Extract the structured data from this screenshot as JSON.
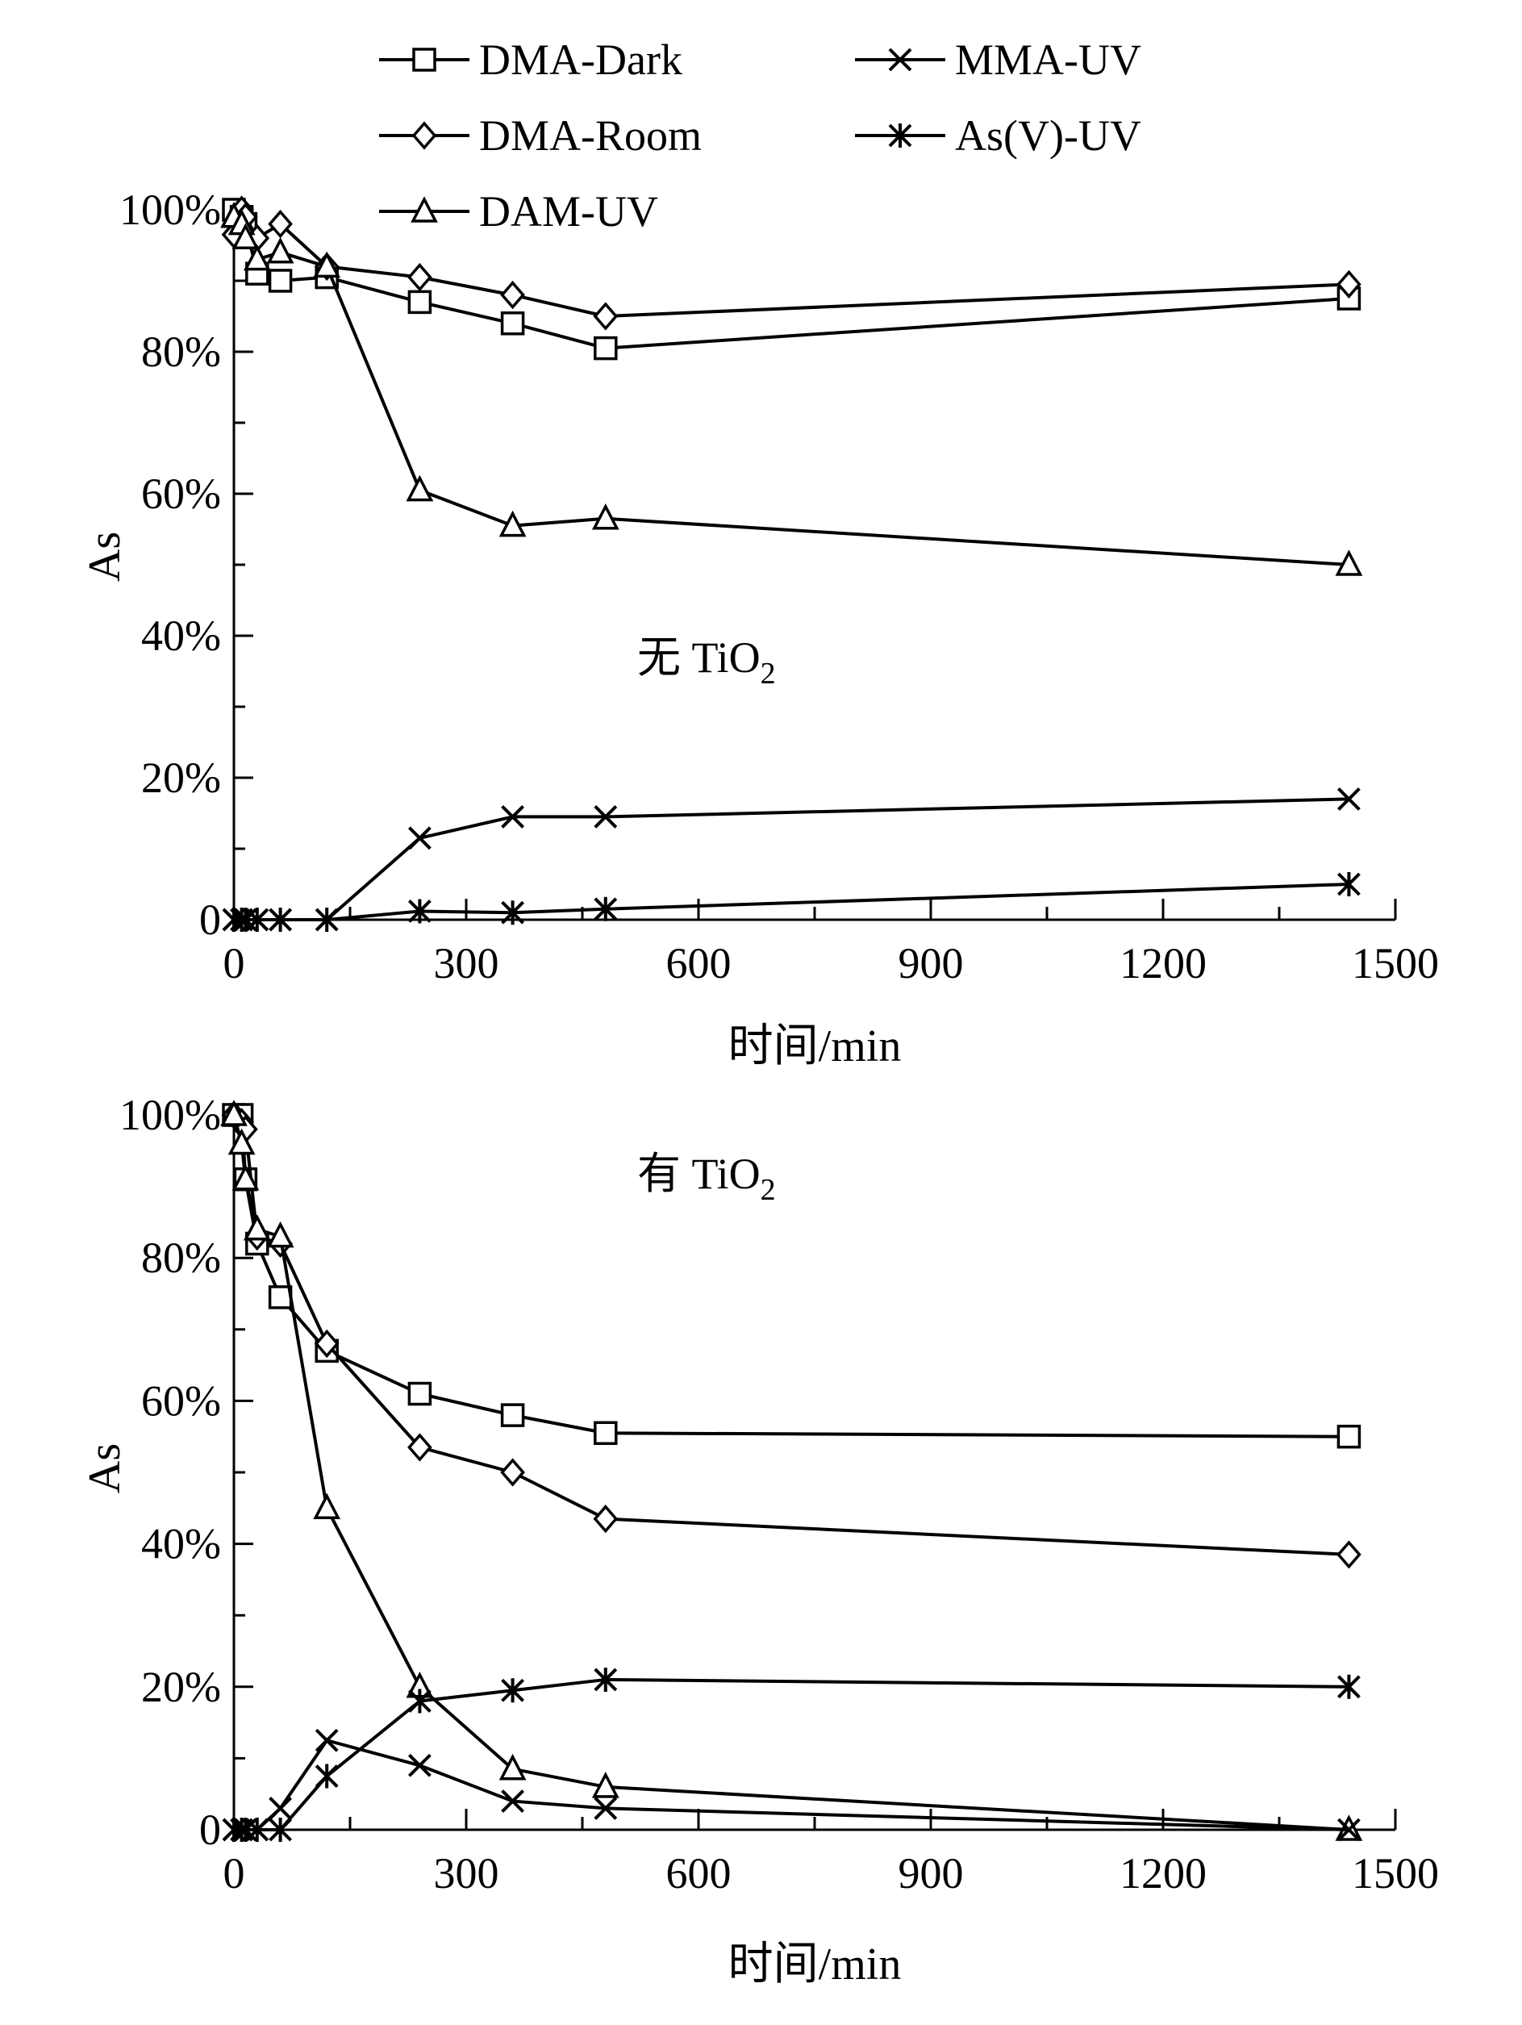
{
  "legend": [
    {
      "key": "dma_dark",
      "label": "DMA-Dark",
      "marker": "square"
    },
    {
      "key": "dma_room",
      "label": "DMA-Room",
      "marker": "diamond"
    },
    {
      "key": "dam_uv",
      "label": "DAM-UV",
      "marker": "triangle"
    },
    {
      "key": "mma_uv",
      "label": "MMA-UV",
      "marker": "x"
    },
    {
      "key": "asv_uv",
      "label": "As(V)-UV",
      "marker": "star"
    }
  ],
  "chart_data": [
    {
      "type": "line",
      "annotation": {
        "prefix": "无 TiO",
        "subscript": "2"
      },
      "xlabel": "时间/min",
      "ylabel": "As",
      "xlim": [
        0,
        1500
      ],
      "ylim": [
        0,
        100
      ],
      "xticks": [
        0,
        300,
        600,
        900,
        1200,
        1500
      ],
      "xtick_labels": [
        "0",
        "300",
        "600",
        "900",
        "1200",
        "1500"
      ],
      "yticks": [
        0,
        20,
        40,
        60,
        80,
        100
      ],
      "ytick_labels": [
        "0",
        "20%",
        "40%",
        "60%",
        "80%",
        "100%"
      ],
      "grid": false,
      "series": [
        {
          "key": "dma_dark",
          "name": "DMA-Dark",
          "marker": "square",
          "x": [
            0,
            10,
            15,
            30,
            60,
            120,
            240,
            360,
            480,
            1440
          ],
          "y": [
            100,
            99,
            98,
            91,
            90,
            90.5,
            87,
            84,
            80.5,
            87.5
          ]
        },
        {
          "key": "dma_room",
          "name": "DMA-Room",
          "marker": "diamond",
          "x": [
            0,
            10,
            15,
            30,
            60,
            120,
            240,
            360,
            480,
            1440
          ],
          "y": [
            96.5,
            100,
            99,
            96,
            98,
            92,
            90.5,
            88,
            85,
            89.5
          ]
        },
        {
          "key": "dam_uv",
          "name": "DAM-UV",
          "marker": "triangle",
          "x": [
            0,
            10,
            15,
            30,
            60,
            120,
            240,
            360,
            480,
            1440
          ],
          "y": [
            99,
            98,
            96,
            93,
            94,
            92,
            60.5,
            55.5,
            56.5,
            50
          ]
        },
        {
          "key": "mma_uv",
          "name": "MMA-UV",
          "marker": "x",
          "x": [
            0,
            10,
            15,
            30,
            60,
            120,
            240,
            360,
            480,
            1440
          ],
          "y": [
            0,
            0,
            0,
            0,
            0,
            0,
            11.5,
            14.5,
            14.5,
            17
          ]
        },
        {
          "key": "asv_uv",
          "name": "As(V)-UV",
          "marker": "star",
          "x": [
            0,
            10,
            15,
            30,
            60,
            120,
            240,
            360,
            480,
            1440
          ],
          "y": [
            0,
            0,
            0,
            0,
            0,
            0,
            1.2,
            1,
            1.5,
            5
          ]
        }
      ]
    },
    {
      "type": "line",
      "annotation": {
        "prefix": "有 TiO",
        "subscript": "2"
      },
      "xlabel": "时间/min",
      "ylabel": "As",
      "xlim": [
        0,
        1500
      ],
      "ylim": [
        0,
        100
      ],
      "xticks": [
        0,
        300,
        600,
        900,
        1200,
        1500
      ],
      "xtick_labels": [
        "0",
        "300",
        "600",
        "900",
        "1200",
        "1500"
      ],
      "yticks": [
        0,
        20,
        40,
        60,
        80,
        100
      ],
      "ytick_labels": [
        "0",
        "20%",
        "40%",
        "60%",
        "80%",
        "100%"
      ],
      "grid": false,
      "series": [
        {
          "key": "dma_dark",
          "name": "DMA-Dark",
          "marker": "square",
          "x": [
            0,
            10,
            15,
            30,
            60,
            120,
            240,
            360,
            480,
            1440
          ],
          "y": [
            100,
            100,
            91,
            82,
            74.5,
            67,
            61,
            58,
            55.5,
            55
          ]
        },
        {
          "key": "dma_room",
          "name": "DMA-Room",
          "marker": "diamond",
          "x": [
            0,
            10,
            15,
            30,
            60,
            120,
            240,
            360,
            480,
            1440
          ],
          "y": [
            100,
            99,
            98,
            83,
            82,
            68,
            53.5,
            50,
            43.5,
            38.5
          ]
        },
        {
          "key": "dam_uv",
          "name": "DAM-UV",
          "marker": "triangle",
          "x": [
            0,
            10,
            15,
            30,
            60,
            120,
            240,
            360,
            480,
            1440
          ],
          "y": [
            100,
            96,
            91,
            84,
            83,
            45,
            20,
            8.5,
            6,
            0
          ]
        },
        {
          "key": "mma_uv",
          "name": "MMA-UV",
          "marker": "x",
          "x": [
            0,
            10,
            15,
            30,
            60,
            120,
            240,
            360,
            480,
            1440
          ],
          "y": [
            0,
            0,
            0,
            0,
            3,
            12.5,
            9,
            4,
            3,
            0
          ]
        },
        {
          "key": "asv_uv",
          "name": "As(V)-UV",
          "marker": "star",
          "x": [
            0,
            10,
            15,
            30,
            60,
            120,
            240,
            360,
            480,
            1440
          ],
          "y": [
            0,
            0,
            0,
            0,
            0,
            7.5,
            18,
            19.5,
            21,
            20
          ]
        }
      ]
    }
  ]
}
